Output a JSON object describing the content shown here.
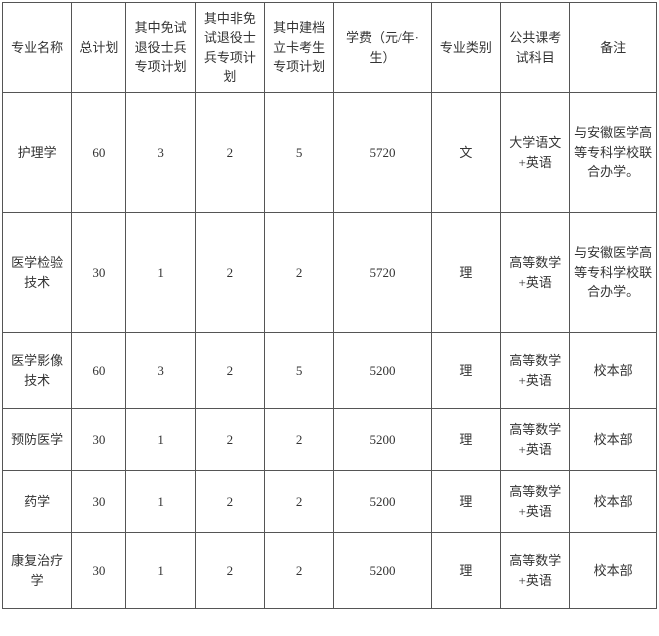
{
  "table": {
    "columns": [
      "专业名称",
      "总计划",
      "其中免试退役士兵专项计划",
      "其中非免试退役士兵专项计划",
      "其中建档立卡考生专项计划",
      "学费（元/年·生）",
      "专业类别",
      "公共课考试科目",
      "备注"
    ],
    "rows": [
      {
        "name": "护理学",
        "total": "60",
        "p1": "3",
        "p2": "2",
        "p3": "5",
        "fee": "5720",
        "cat": "文",
        "exam": "大学语文+英语",
        "note": "与安徽医学高等专科学校联合办学。",
        "h": "tall"
      },
      {
        "name": "医学检验技术",
        "total": "30",
        "p1": "1",
        "p2": "2",
        "p3": "2",
        "fee": "5720",
        "cat": "理",
        "exam": "高等数学+英语",
        "note": "与安徽医学高等专科学校联合办学。",
        "h": "tall"
      },
      {
        "name": "医学影像技术",
        "total": "60",
        "p1": "3",
        "p2": "2",
        "p3": "5",
        "fee": "5200",
        "cat": "理",
        "exam": "高等数学+英语",
        "note": "校本部",
        "h": "med"
      },
      {
        "name": "预防医学",
        "total": "30",
        "p1": "1",
        "p2": "2",
        "p3": "2",
        "fee": "5200",
        "cat": "理",
        "exam": "高等数学+英语",
        "note": "校本部",
        "h": "short"
      },
      {
        "name": "药学",
        "total": "30",
        "p1": "1",
        "p2": "2",
        "p3": "2",
        "fee": "5200",
        "cat": "理",
        "exam": "高等数学+英语",
        "note": "校本部",
        "h": "short"
      },
      {
        "name": "康复治疗学",
        "total": "30",
        "p1": "1",
        "p2": "2",
        "p3": "2",
        "fee": "5200",
        "cat": "理",
        "exam": "高等数学+英语",
        "note": "校本部",
        "h": "med"
      }
    ],
    "border_color": "#555555",
    "text_color": "#333333",
    "background_color": "#ffffff",
    "font_size": 13
  }
}
